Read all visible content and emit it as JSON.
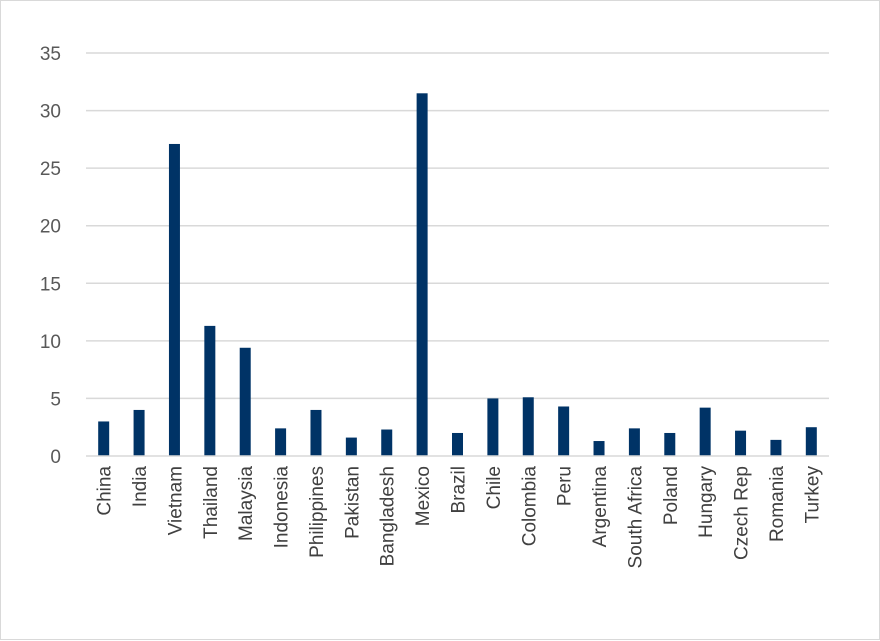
{
  "chart_data": {
    "type": "bar",
    "title": "",
    "xlabel": "",
    "ylabel": "",
    "ylim": [
      0,
      35
    ],
    "yticks": [
      0,
      5,
      10,
      15,
      20,
      25,
      30,
      35
    ],
    "grid": true,
    "legend": "none",
    "bar_color": "#003366",
    "categories": [
      "China",
      "India",
      "Vietnam",
      "Thailand",
      "Malaysia",
      "Indonesia",
      "Philippines",
      "Pakistan",
      "Bangladesh",
      "Mexico",
      "Brazil",
      "Chile",
      "Colombia",
      "Peru",
      "Argentina",
      "South Africa",
      "Poland",
      "Hungary",
      "Czech Rep",
      "Romania",
      "Turkey"
    ],
    "values": [
      3.0,
      4.0,
      27.1,
      11.3,
      9.4,
      2.4,
      4.0,
      1.6,
      2.3,
      31.5,
      2.0,
      5.0,
      5.1,
      4.3,
      1.3,
      2.4,
      2.0,
      4.2,
      2.2,
      1.4,
      2.5
    ]
  }
}
